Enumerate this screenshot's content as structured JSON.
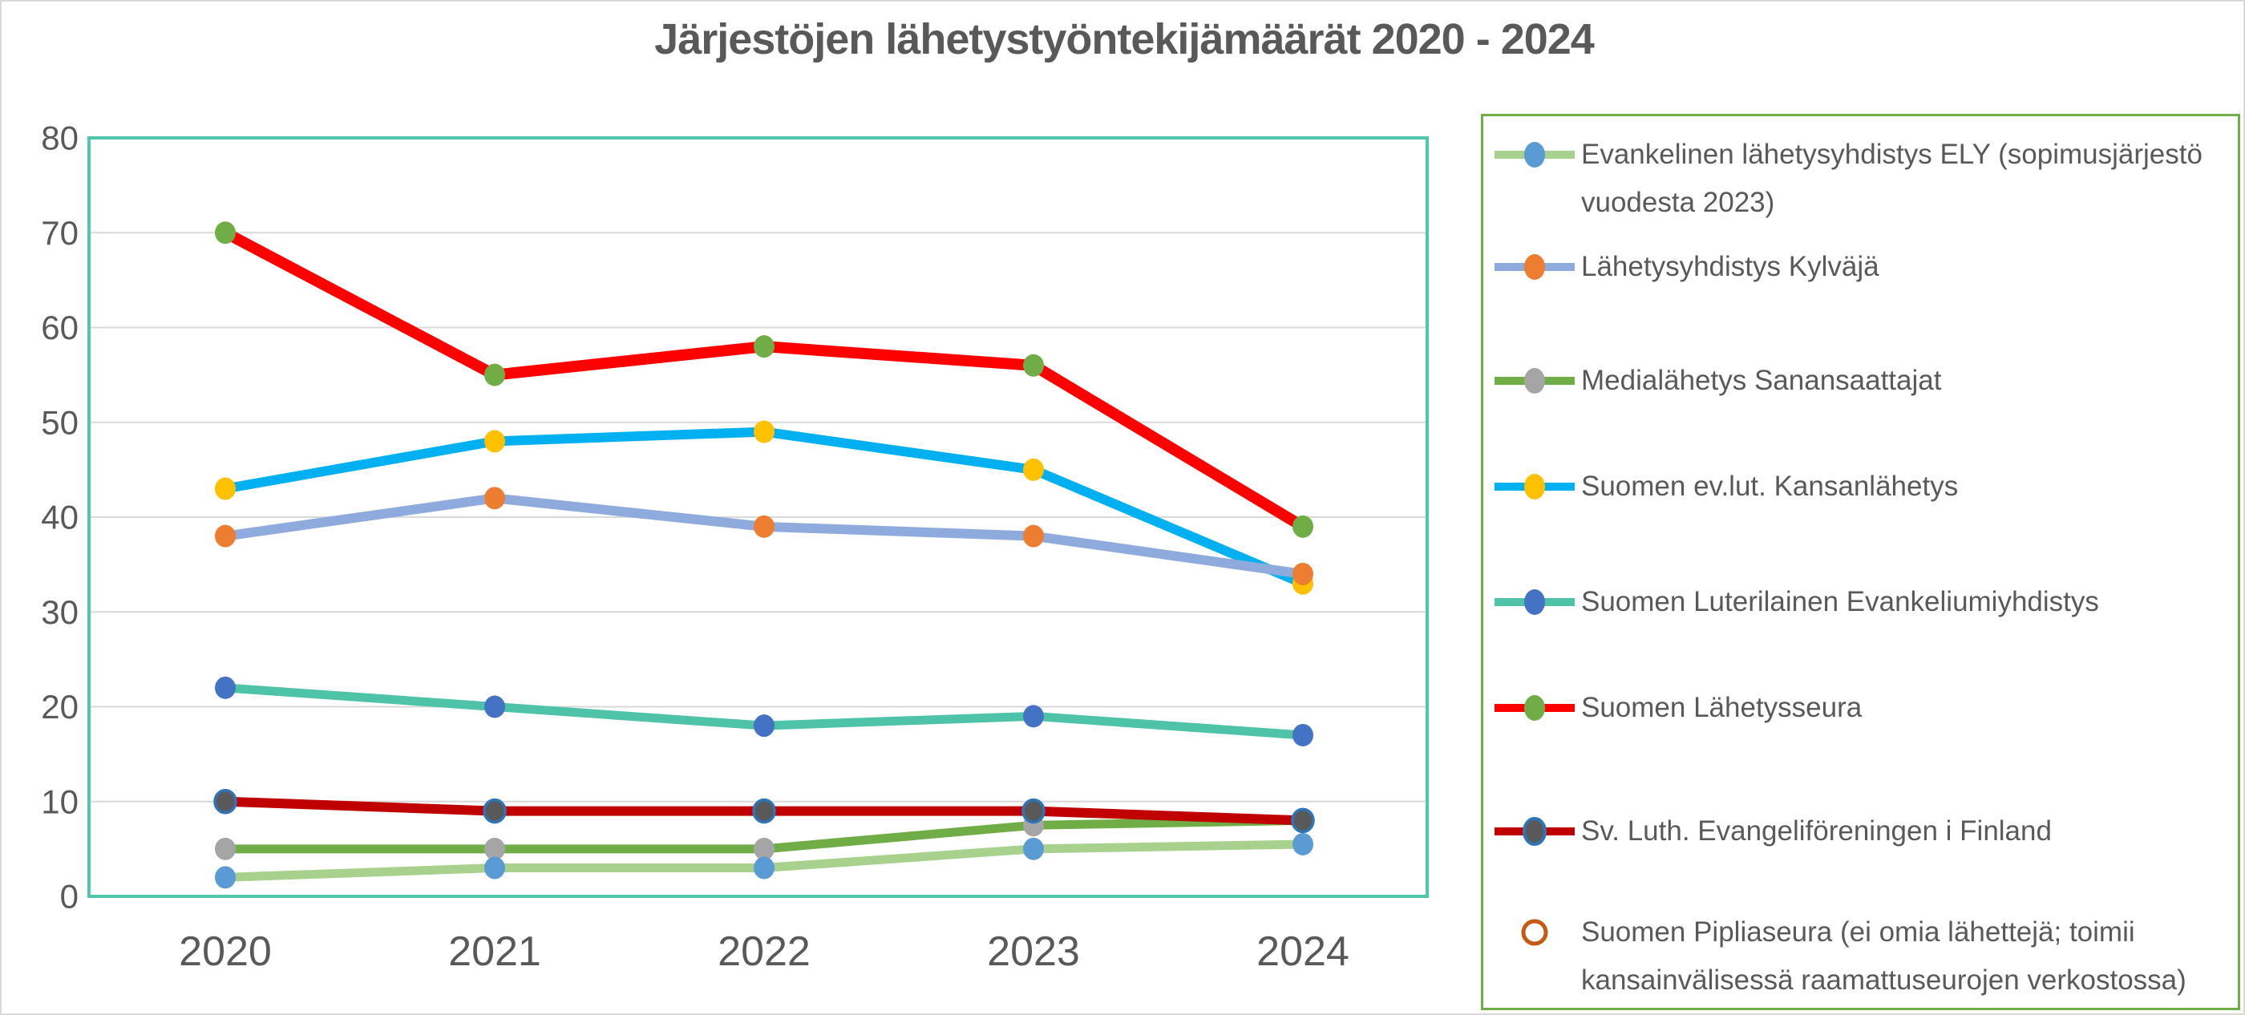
{
  "title": "Järjestöjen lähetystyöntekijämäärät 2020 - 2024",
  "colors": {
    "frame": "#D9D9D9",
    "plot_border": "#4FC7AC",
    "grid": "#D9D9D9",
    "text": "#595959",
    "title_text": "#595959",
    "legend_border": "#70AD47"
  },
  "chart_data": {
    "type": "line",
    "title": "Järjestöjen lähetystyöntekijämäärät 2020 - 2024",
    "categories": [
      "2020",
      "2021",
      "2022",
      "2023",
      "2024"
    ],
    "series": [
      {
        "name": "Evankelinen lähetysyhdistys ELY (sopimusjärjestö vuodesta 2023)",
        "values": [
          2,
          3,
          3,
          5,
          5.5
        ],
        "line_color": "#A9D18E",
        "marker_color": "#5B9BD5",
        "line_width": 11
      },
      {
        "name": "Lähetysyhdistys Kylväjä",
        "values": [
          38,
          42,
          39,
          38,
          34
        ],
        "line_color": "#8FAADC",
        "marker_color": "#ED7D31",
        "line_width": 12
      },
      {
        "name": "Medialähetys Sanansaattajat",
        "values": [
          5,
          5,
          5,
          7.5,
          8
        ],
        "line_color": "#70AD47",
        "marker_color": "#A5A5A5",
        "line_width": 11
      },
      {
        "name": "Suomen ev.lut. Kansanlähetys",
        "values": [
          43,
          48,
          49,
          45,
          33
        ],
        "line_color": "#00B0F0",
        "marker_color": "#FFC000",
        "line_width": 12
      },
      {
        "name": "Suomen Luterilainen Evankeliumiyhdistys",
        "values": [
          22,
          20,
          18,
          19,
          17
        ],
        "line_color": "#4EC3A8",
        "marker_color": "#4472C4",
        "line_width": 11
      },
      {
        "name": "Suomen Lähetysseura",
        "values": [
          70,
          55,
          58,
          56,
          39
        ],
        "line_color": "#FF0000",
        "marker_color": "#70AD47",
        "line_width": 14
      },
      {
        "name": "Sv. Luth. Evangeliföreningen i Finland",
        "values": [
          10,
          9,
          9,
          9,
          8
        ],
        "line_color": "#C00000",
        "marker_color": "#595959",
        "marker_ring": "#2E74B6",
        "line_width": 12
      },
      {
        "name": "Suomen Pipliaseura (ei omia lähettejä; toimii kansainvälisessä raamattuseurojen verkostossa)",
        "values": [],
        "marker_only": true,
        "marker_ring": "#C55A11"
      }
    ],
    "z_order": [
      2,
      0,
      4,
      3,
      1,
      5,
      6
    ],
    "xlabel": "",
    "ylabel": "",
    "ylim": [
      0,
      80
    ],
    "yticks": [
      0,
      10,
      20,
      30,
      40,
      50,
      60,
      70,
      80
    ],
    "grid": true,
    "legend_position": "right"
  }
}
